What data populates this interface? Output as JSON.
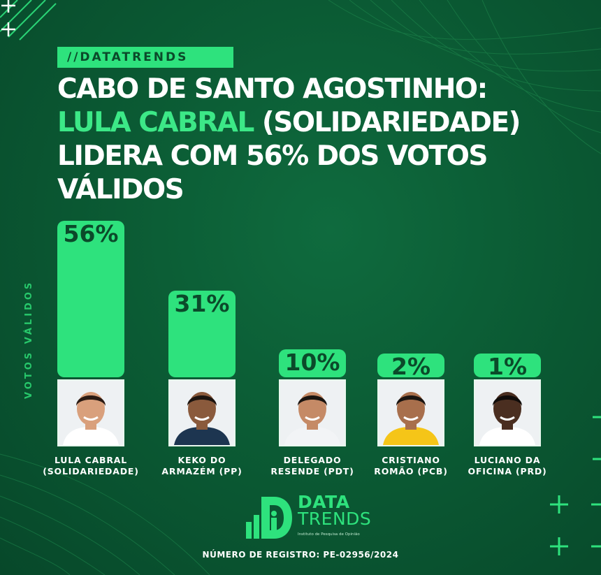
{
  "tag": "//DATATRENDS",
  "headline": {
    "line1": "CABO DE SANTO AGOSTINHO:",
    "line2_highlight": "LULA CABRAL",
    "line2_rest": " (SOLIDARIEDADE)",
    "line3": "LIDERA COM 56% DOS VOTOS",
    "line4": "VÁLIDOS"
  },
  "chart_data": {
    "type": "bar",
    "ylabel": "VOTOS VÁLIDOS",
    "categories": [
      "LULA CABRAL (SOLIDARIEDADE)",
      "KEKO DO ARMAZÉM (PP)",
      "DELEGADO RESENDE (PDT)",
      "CRISTIANO ROMÃO (PCB)",
      "LUCIANO DA OFICINA (PRD)"
    ],
    "values": [
      56,
      31,
      10,
      2,
      1
    ],
    "value_labels": [
      "56%",
      "31%",
      "10%",
      "2%",
      "1%"
    ],
    "ylim": [
      0,
      56
    ],
    "grid": false,
    "bar_color": "#2ee27d",
    "label_color": "#0b4a2a"
  },
  "candidates": [
    {
      "line1": "LULA CABRAL",
      "line2": "(SOLIDARIEDADE)",
      "shirt": "#ffffff",
      "skin": "#d9a07c",
      "hair": "#2a1a12"
    },
    {
      "line1": "KEKO DO",
      "line2": "ARMAZÉM (PP)",
      "shirt": "#1d3550",
      "skin": "#8a5a3c",
      "hair": "#1c140f"
    },
    {
      "line1": "DELEGADO",
      "line2": "RESENDE (PDT)",
      "shirt": "#f2f4f6",
      "skin": "#c58a66",
      "hair": "#1a1410"
    },
    {
      "line1": "CRISTIANO",
      "line2": "ROMÃO (PCB)",
      "shirt": "#f5c518",
      "skin": "#a86f4c",
      "hair": "#1a1410"
    },
    {
      "line1": "LUCIANO DA",
      "line2": "OFICINA (PRD)",
      "shirt": "#ffffff",
      "skin": "#4a2e20",
      "hair": "#100c0a"
    }
  ],
  "logo": {
    "line1": "DATA",
    "line2": "TRENDS",
    "tagline": "Instituto de Pesquisa de Opinião"
  },
  "registro": "NÚMERO DE REGISTRO:  PE-02956/2024"
}
